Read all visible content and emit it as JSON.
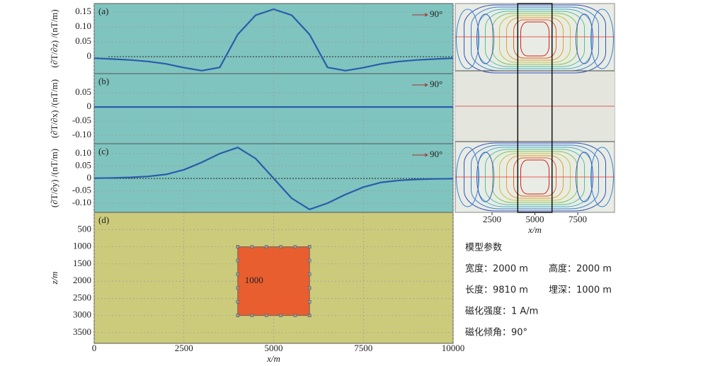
{
  "chart_data": [
    {
      "type": "line",
      "label": "(a)",
      "ylabel": "(∂T/∂z) /(nT/m)",
      "annotation": "90°",
      "color": "#2a5caa",
      "x": [
        0,
        500,
        1000,
        1500,
        2000,
        2500,
        3000,
        3500,
        4000,
        4500,
        5000,
        5500,
        6000,
        6500,
        7000,
        7500,
        8000,
        8500,
        9000,
        9500,
        10000
      ],
      "values": [
        -0.005,
        -0.008,
        -0.011,
        -0.016,
        -0.024,
        -0.037,
        -0.047,
        -0.036,
        0.075,
        0.14,
        0.16,
        0.14,
        0.075,
        -0.036,
        -0.047,
        -0.037,
        -0.024,
        -0.016,
        -0.011,
        -0.008,
        -0.005
      ],
      "xlim": [
        0,
        10000
      ],
      "xticks": [
        0,
        2500,
        5000,
        7500,
        10000
      ],
      "ylim": [
        -0.057,
        0.179
      ],
      "yticks": [
        0,
        0.05,
        {
          "value": 0.1,
          "label": "0.10"
        },
        0.15
      ],
      "grid": true
    },
    {
      "type": "line",
      "label": "(b)",
      "ylabel": "(∂T/∂x) /(nT/m)",
      "annotation": "90°",
      "color": "#2a5caa",
      "x": [
        0,
        500,
        1000,
        1500,
        2000,
        2500,
        3000,
        3500,
        4000,
        4500,
        5000,
        5500,
        6000,
        6500,
        7000,
        7500,
        8000,
        8500,
        9000,
        9500,
        10000
      ],
      "values": [
        0,
        0,
        0,
        0,
        0,
        0,
        0,
        0,
        0,
        0,
        0,
        0,
        0,
        0,
        0,
        0,
        0,
        0,
        0,
        0,
        0
      ],
      "xlim": [
        0,
        10000
      ],
      "xticks": [
        0,
        2500,
        5000,
        7500,
        10000
      ],
      "ylim": [
        -0.13,
        0.118
      ],
      "yticks": [
        {
          "value": -0.1,
          "label": "-0.10"
        },
        -0.05,
        0,
        0.05
      ],
      "grid": true
    },
    {
      "type": "line",
      "label": "(c)",
      "ylabel": "(∂T/∂y) /(nT/m)",
      "annotation": "90°",
      "color": "#2a5caa",
      "x": [
        0,
        500,
        1000,
        1500,
        2000,
        2500,
        3000,
        3500,
        4000,
        4500,
        5000,
        5500,
        6000,
        6500,
        7000,
        7500,
        8000,
        8500,
        9000,
        9500,
        10000
      ],
      "values": [
        0.001,
        0.002,
        0.004,
        0.008,
        0.016,
        0.035,
        0.065,
        0.1,
        0.125,
        0.08,
        0,
        -0.08,
        -0.125,
        -0.1,
        -0.065,
        -0.035,
        -0.016,
        -0.008,
        -0.004,
        -0.002,
        -0.001
      ],
      "xlim": [
        0,
        10000
      ],
      "xticks": [
        0,
        2500,
        5000,
        7500,
        10000
      ],
      "ylim": [
        -0.137,
        0.14
      ],
      "yticks": [
        {
          "value": -0.1,
          "label": "-0.10"
        },
        -0.05,
        0,
        0.05,
        {
          "value": 0.1,
          "label": "0.10"
        }
      ],
      "grid": true
    },
    {
      "type": "model",
      "label": "(d)",
      "xlabel": "x/m",
      "ylabel": "z/m",
      "color": "#e85e2e",
      "body": {
        "x": [
          4000,
          6000
        ],
        "z": [
          1000,
          3000
        ],
        "label": "1000"
      },
      "xlim": [
        0,
        10000
      ],
      "xticks": [
        0,
        2500,
        5000,
        7500,
        10000
      ],
      "ylim": [
        3810,
        0
      ],
      "yticks": [
        500,
        1000,
        1500,
        2000,
        2500,
        3000,
        3500
      ],
      "grid": true
    },
    {
      "type": "contour",
      "xlabel": "x/m",
      "xlim": [
        350,
        9650
      ],
      "xticks": [
        2500,
        5000,
        7500
      ]
    }
  ],
  "parameters": {
    "title": "模型参数",
    "items": [
      "宽度：2000 m",
      "高度：2000 m",
      "长度：9810 m",
      "埋深：1000 m",
      "磁化强度：1 A/m",
      "磁化倾角：90°"
    ]
  }
}
